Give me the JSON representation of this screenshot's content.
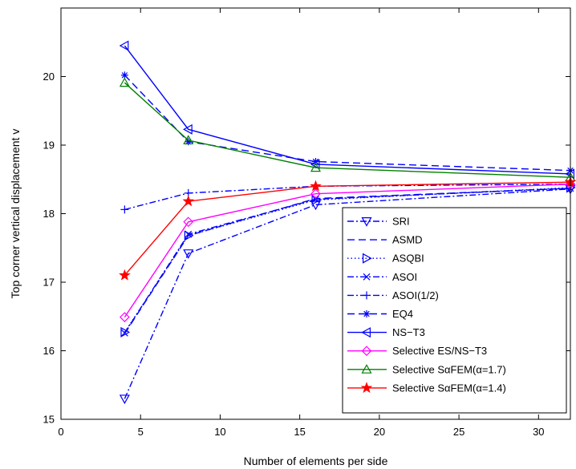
{
  "chart_data": {
    "type": "line",
    "xlabel": "Number of elements per side",
    "ylabel": "Top corner vertical displacement v",
    "xlim": [
      0,
      32
    ],
    "ylim": [
      15,
      21
    ],
    "xticks": [
      0,
      5,
      10,
      15,
      20,
      25,
      30
    ],
    "yticks": [
      15,
      16,
      17,
      18,
      19,
      20
    ],
    "grid": false,
    "legend_position": "lower-right",
    "x": [
      4,
      8,
      16,
      32
    ],
    "series": [
      {
        "name": "SRI",
        "values": [
          15.3,
          17.42,
          18.13,
          18.36
        ],
        "color": "#0000ff",
        "dash": "8,3,2,3",
        "marker": "triangle-down"
      },
      {
        "name": "ASMD",
        "values": [
          16.25,
          17.68,
          18.22,
          18.37
        ],
        "color": "#0000ff",
        "dash": "9,5",
        "marker": "none"
      },
      {
        "name": "ASQBI",
        "values": [
          16.27,
          17.68,
          18.2,
          18.38
        ],
        "color": "#0000ff",
        "dash": "1.5,3",
        "marker": "triangle-right"
      },
      {
        "name": "ASOI",
        "values": [
          16.26,
          17.7,
          18.21,
          18.37
        ],
        "color": "#0000ff",
        "dash": "8,3,2,3",
        "marker": "x"
      },
      {
        "name": "ASOI(1/2)",
        "values": [
          18.06,
          18.3,
          18.4,
          18.43
        ],
        "color": "#0000ff",
        "dash": "8,3,2,3",
        "marker": "plus"
      },
      {
        "name": "EQ4",
        "values": [
          20.02,
          19.05,
          18.76,
          18.63
        ],
        "color": "#0000ff",
        "dash": "9,5",
        "marker": "asterisk"
      },
      {
        "name": "NS−T3",
        "values": [
          20.45,
          19.23,
          18.72,
          18.58
        ],
        "color": "#0000ff",
        "dash": "",
        "marker": "triangle-left"
      },
      {
        "name": "Selective ES/NS−T3",
        "values": [
          16.49,
          17.88,
          18.29,
          18.43
        ],
        "color": "#ff00ff",
        "dash": "",
        "marker": "diamond"
      },
      {
        "name": "Selective SαFEM(α=1.7)",
        "values": [
          19.91,
          19.07,
          18.67,
          18.53
        ],
        "color": "#008000",
        "dash": "",
        "marker": "triangle-up"
      },
      {
        "name": "Selective SαFEM(α=1.4)",
        "values": [
          17.1,
          18.18,
          18.4,
          18.46
        ],
        "color": "#ff0000",
        "dash": "",
        "marker": "star"
      }
    ]
  }
}
